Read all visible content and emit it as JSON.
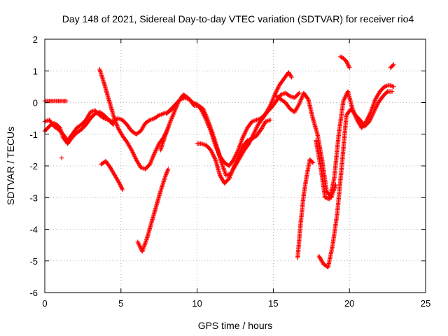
{
  "chart_data": {
    "type": "scatter",
    "title": "Day 148 of 2021, Sidereal Day-to-day VTEC variation (SDTVAR) for receiver rio4",
    "xlabel": "GPS time / hours",
    "ylabel": "SDTVAR / TECUs",
    "xlim": [
      0,
      25
    ],
    "ylim": [
      -6,
      2
    ],
    "xticks": [
      0,
      5,
      10,
      15,
      20,
      25
    ],
    "yticks": [
      -6,
      -5,
      -4,
      -3,
      -2,
      -1,
      0,
      1,
      2
    ],
    "xtick_labels": [
      "0",
      "5",
      "10",
      "15",
      "20",
      "25"
    ],
    "ytick_labels": [
      "-6",
      "-5",
      "-4",
      "-3",
      "-2",
      "-1",
      "0",
      "1",
      "2"
    ],
    "grid": true,
    "marker": "plus",
    "color": "#ff0000",
    "series": [
      {
        "name": "t0",
        "x": [
          0.0,
          0.3,
          0.6,
          0.9,
          1.2,
          1.4
        ],
        "y": [
          0.05,
          0.05,
          0.05,
          0.05,
          0.05,
          0.05
        ]
      },
      {
        "name": "t1",
        "x": [
          0.0,
          0.3,
          0.6,
          0.9,
          1.2,
          1.5,
          1.8,
          2.1,
          2.4,
          2.7,
          3.0,
          3.3,
          3.6,
          3.9,
          4.2,
          4.5,
          4.8,
          5.1,
          5.4,
          5.7,
          6.0,
          6.3,
          6.6,
          6.9,
          7.2,
          7.5,
          7.8,
          8.1,
          8.4
        ],
        "y": [
          -0.6,
          -0.55,
          -0.75,
          -0.85,
          -1.0,
          -1.2,
          -1.0,
          -0.8,
          -0.7,
          -0.55,
          -0.3,
          -0.25,
          -0.4,
          -0.5,
          -0.55,
          -0.6,
          -0.5,
          -0.55,
          -0.7,
          -0.9,
          -1.0,
          -0.9,
          -0.65,
          -0.55,
          -0.5,
          -0.4,
          -0.35,
          -0.3,
          -0.2
        ]
      },
      {
        "name": "t2",
        "x": [
          0.0,
          0.2,
          0.4,
          0.6,
          0.8,
          1.0,
          1.2,
          1.5,
          1.8,
          2.1,
          2.4,
          2.7,
          3.0,
          3.3,
          3.6,
          3.9,
          4.2,
          4.5
        ],
        "y": [
          -0.9,
          -0.8,
          -0.7,
          -0.65,
          -0.7,
          -0.8,
          -1.1,
          -1.3,
          -1.1,
          -0.95,
          -0.85,
          -0.7,
          -0.5,
          -0.35,
          -0.3,
          -0.4,
          -0.55,
          -0.7
        ]
      },
      {
        "name": "t3",
        "x": [
          3.6,
          3.9,
          4.2,
          4.5,
          4.8,
          5.1,
          5.4,
          5.7,
          6.0,
          6.3,
          6.6,
          6.9,
          7.2,
          7.5,
          7.8,
          8.1
        ],
        "y": [
          1.05,
          0.6,
          0.1,
          -0.4,
          -0.8,
          -1.05,
          -1.25,
          -1.5,
          -1.8,
          -2.05,
          -2.1,
          -1.95,
          -1.6,
          -1.3,
          -1.1,
          -0.8
        ]
      },
      {
        "name": "t4",
        "x": [
          3.7,
          4.0,
          4.3,
          4.6,
          4.9,
          5.1
        ],
        "y": [
          -1.95,
          -1.85,
          -2.05,
          -2.3,
          -2.55,
          -2.75
        ]
      },
      {
        "name": "t5",
        "x": [
          6.1,
          6.4,
          6.7,
          7.0,
          7.3,
          7.6,
          7.9,
          8.1
        ],
        "y": [
          -4.4,
          -4.7,
          -4.3,
          -3.8,
          -3.3,
          -2.8,
          -2.35,
          -2.1
        ]
      },
      {
        "name": "t6",
        "x": [
          7.6,
          7.9,
          8.2,
          8.5,
          8.8,
          9.1,
          9.4,
          9.7,
          10.0,
          10.3,
          10.6,
          10.9,
          11.2,
          11.5,
          11.8,
          12.1,
          12.4,
          12.7,
          13.0,
          13.3,
          13.6,
          13.9,
          14.2,
          14.5,
          14.8,
          15.1,
          15.4,
          15.7,
          16.0,
          16.2
        ],
        "y": [
          -1.5,
          -1.05,
          -0.65,
          -0.3,
          0.05,
          0.25,
          0.15,
          0.0,
          -0.05,
          -0.25,
          -0.55,
          -0.9,
          -1.35,
          -1.7,
          -1.9,
          -2.0,
          -1.8,
          -1.5,
          -1.1,
          -0.8,
          -0.6,
          -0.55,
          -0.5,
          -0.35,
          -0.1,
          0.25,
          0.55,
          0.75,
          0.95,
          0.8
        ]
      },
      {
        "name": "t7",
        "x": [
          8.0,
          8.3,
          8.6,
          8.9,
          9.2,
          9.5,
          9.8,
          10.1,
          10.4,
          10.7,
          11.0,
          11.3,
          11.6,
          11.9,
          12.2,
          12.5,
          12.8,
          13.1,
          13.4,
          13.7,
          14.0,
          14.3,
          14.6,
          14.9,
          15.2,
          15.5,
          15.8,
          16.1,
          16.4,
          16.7
        ],
        "y": [
          -0.35,
          -0.2,
          -0.05,
          0.1,
          0.15,
          0.1,
          -0.1,
          -0.1,
          -0.2,
          -0.55,
          -0.95,
          -1.4,
          -1.9,
          -2.3,
          -2.25,
          -2.0,
          -1.75,
          -1.5,
          -1.3,
          -1.0,
          -0.7,
          -0.5,
          -0.3,
          -0.15,
          0.05,
          0.25,
          0.3,
          0.2,
          0.15,
          0.3
        ]
      },
      {
        "name": "t8",
        "x": [
          10.0,
          10.3,
          10.6,
          10.9,
          11.2,
          11.5,
          11.8,
          12.1,
          12.4,
          12.7,
          13.0,
          13.3,
          13.6,
          13.9,
          14.2,
          14.5,
          14.8
        ],
        "y": [
          -1.3,
          -1.3,
          -1.35,
          -1.5,
          -1.8,
          -2.3,
          -2.55,
          -2.4,
          -2.05,
          -1.7,
          -1.4,
          -1.2,
          -1.15,
          -1.05,
          -0.85,
          -0.6,
          -0.55
        ]
      },
      {
        "name": "t9",
        "x": [
          15.2,
          15.5,
          15.8,
          16.1,
          16.4,
          16.7,
          17.0,
          17.3,
          17.6,
          17.9,
          18.2,
          18.5,
          18.8,
          19.1
        ],
        "y": [
          0.2,
          0.1,
          0.0,
          -0.2,
          -0.3,
          -0.05,
          0.3,
          0.1,
          -0.5,
          -1.0,
          -1.8,
          -2.8,
          -3.0,
          -2.6
        ]
      },
      {
        "name": "t10",
        "x": [
          16.6,
          16.8,
          17.0,
          17.2,
          17.4,
          17.6
        ],
        "y": [
          -4.9,
          -3.8,
          -2.9,
          -2.3,
          -1.8,
          -1.9
        ]
      },
      {
        "name": "t11",
        "x": [
          17.8,
          18.1,
          18.4,
          18.7,
          19.0,
          19.3,
          19.6,
          19.9,
          20.2,
          20.5,
          20.8,
          21.1,
          21.4,
          21.7,
          22.0,
          22.3,
          22.6,
          22.9
        ],
        "y": [
          -1.2,
          -2.0,
          -3.0,
          -3.05,
          -2.4,
          -1.0,
          0.05,
          0.35,
          -0.2,
          -0.55,
          -0.8,
          -0.6,
          -0.3,
          0.1,
          0.35,
          0.5,
          0.55,
          0.5
        ]
      },
      {
        "name": "t12",
        "x": [
          18.0,
          18.3,
          18.6,
          18.9,
          19.2,
          19.5,
          19.8,
          20.1,
          20.4,
          20.7,
          21.0,
          21.3,
          21.6,
          21.9,
          22.2,
          22.5,
          22.8
        ],
        "y": [
          -4.85,
          -5.1,
          -5.2,
          -4.5,
          -3.5,
          -2.0,
          -0.4,
          -0.2,
          -0.4,
          -0.55,
          -0.75,
          -0.6,
          -0.3,
          0.0,
          0.2,
          0.35,
          0.35
        ]
      },
      {
        "name": "t13",
        "x": [
          19.4,
          19.6,
          19.8,
          20.0
        ],
        "y": [
          1.45,
          1.4,
          1.3,
          1.1
        ]
      },
      {
        "name": "t14",
        "x": [
          22.7,
          22.8,
          22.9
        ],
        "y": [
          1.1,
          1.15,
          1.2
        ]
      },
      {
        "name": "t15",
        "x": [
          1.1
        ],
        "y": [
          -1.75
        ]
      }
    ]
  }
}
